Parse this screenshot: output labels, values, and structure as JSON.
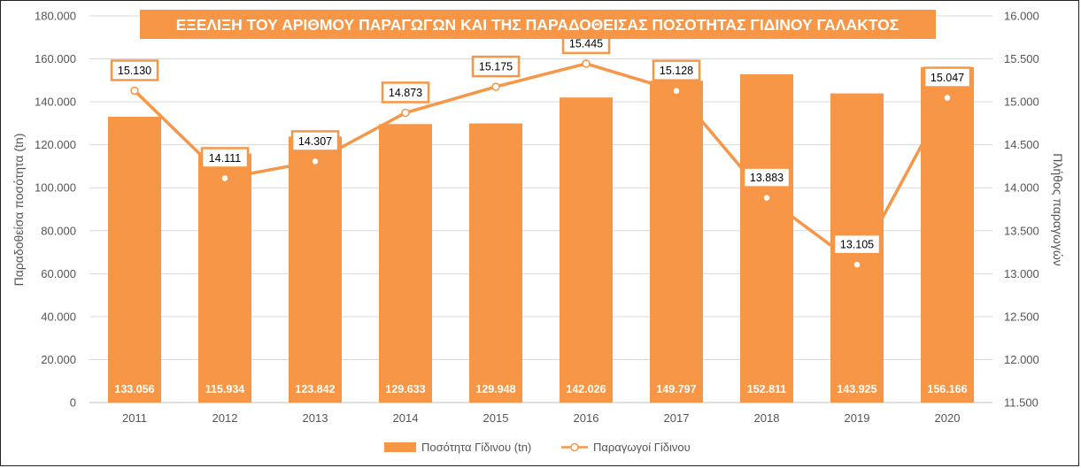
{
  "chart_data": {
    "type": "bar",
    "title": "ΕΞΕΛΙΞΗ ΤΟΥ ΑΡΙΘΜΟΥ ΠΑΡΑΓΩΓΩΝ ΚΑΙ ΤΗΣ ΠΑΡΑΔΟΘΕΙΣΑΣ ΠΟΣΟΤΗΤΑΣ ΓΙΔΙΝΟΥ ΓΑΛΑΚΤΟΣ",
    "categories": [
      "2011",
      "2012",
      "2013",
      "2014",
      "2015",
      "2016",
      "2017",
      "2018",
      "2019",
      "2020"
    ],
    "series": [
      {
        "name": "Ποσότητα Γίδινου (tn)",
        "type": "bar",
        "axis": "left",
        "values": [
          133056,
          115934,
          123842,
          129633,
          129948,
          142026,
          149797,
          152811,
          143925,
          156166
        ],
        "labels": [
          "133.056",
          "115.934",
          "123.842",
          "129.633",
          "129.948",
          "142.026",
          "149.797",
          "152.811",
          "143.925",
          "156.166"
        ]
      },
      {
        "name": "Παραγωγοί Γίδινου",
        "type": "line",
        "axis": "right",
        "values": [
          15130,
          14111,
          14307,
          14873,
          15175,
          15445,
          15128,
          13883,
          13105,
          15047
        ],
        "labels": [
          "15.130",
          "14.111",
          "14.307",
          "14.873",
          "15.175",
          "15.445",
          "15.128",
          "13.883",
          "13.105",
          "15.047"
        ]
      }
    ],
    "ylabel": "Παραδοθείσα ποσότητα (tn)",
    "y2label": "Πλήθος παραγωγών",
    "ylim": [
      0,
      180000
    ],
    "y2lim": [
      11500,
      16000
    ],
    "yticks": [
      "0",
      "20.000",
      "40.000",
      "60.000",
      "80.000",
      "100.000",
      "120.000",
      "140.000",
      "160.000",
      "180.000"
    ],
    "y2ticks": [
      "11.500",
      "12.000",
      "12.500",
      "13.000",
      "13.500",
      "14.000",
      "14.500",
      "15.000",
      "15.500",
      "16.000"
    ],
    "grid": true,
    "legend": "bottom",
    "colors": {
      "bar": "#F79646",
      "line": "#F79646",
      "title_bg": "#F79646",
      "grid": "#D9D9D9"
    }
  }
}
